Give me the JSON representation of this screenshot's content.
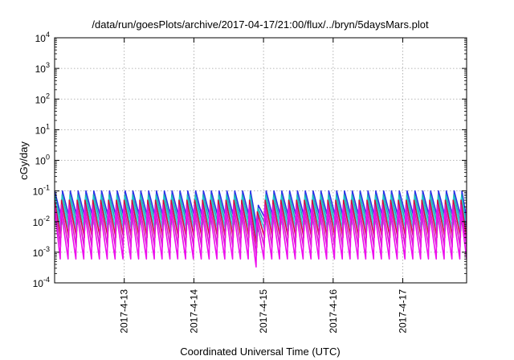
{
  "chart_data": {
    "type": "line",
    "title": "/data/run/goesPlots/archive/2017-04-17/21:00/flux/../bryn/5daysMars.plot",
    "xlabel": "Coordinated Universal Time (UTC)",
    "ylabel": "cGy/day",
    "y_scale": "log",
    "ylim": [
      0.0001,
      10000
    ],
    "y_ticks": [
      {
        "base": "10",
        "exp": "-4",
        "value": 0.0001
      },
      {
        "base": "10",
        "exp": "-3",
        "value": 0.001
      },
      {
        "base": "10",
        "exp": "-2",
        "value": 0.01
      },
      {
        "base": "10",
        "exp": "-1",
        "value": 0.1
      },
      {
        "base": "10",
        "exp": "0",
        "value": 1
      },
      {
        "base": "10",
        "exp": "1",
        "value": 10
      },
      {
        "base": "10",
        "exp": "2",
        "value": 100
      },
      {
        "base": "10",
        "exp": "3",
        "value": 1000
      },
      {
        "base": "10",
        "exp": "4",
        "value": 10000
      }
    ],
    "xlim": [
      "2017-04-12 00:00",
      "2017-04-17 22:00"
    ],
    "x_ticks": [
      {
        "label": "2017-4-13",
        "value": "2017-04-13 00:00"
      },
      {
        "label": "2017-4-14",
        "value": "2017-04-14 00:00"
      },
      {
        "label": "2017-4-15",
        "value": "2017-04-15 00:00"
      },
      {
        "label": "2017-4-16",
        "value": "2017-04-16 00:00"
      },
      {
        "label": "2017-4-17",
        "value": "2017-04-17 00:00"
      }
    ],
    "grid": true,
    "sawtooth_period_hours": 2.7,
    "series": [
      {
        "color": "#2b33e8",
        "peak": 0.1,
        "trough": 0.012
      },
      {
        "color": "#1fb0b0",
        "peak": 0.075,
        "trough": 0.008
      },
      {
        "color": "#28d0d8",
        "peak": 0.06,
        "trough": 0.005
      },
      {
        "color": "#d01040",
        "peak": 0.05,
        "trough": 0.003
      },
      {
        "color": "#d41fc8",
        "peak": 0.035,
        "trough": 0.0015
      },
      {
        "color": "#ee10ee",
        "peak": 0.025,
        "trough": 0.0006
      }
    ],
    "dip": {
      "center": "2017-04-14 23:30",
      "start": "2017-04-14 20:30",
      "min_factor": 0.15
    }
  }
}
